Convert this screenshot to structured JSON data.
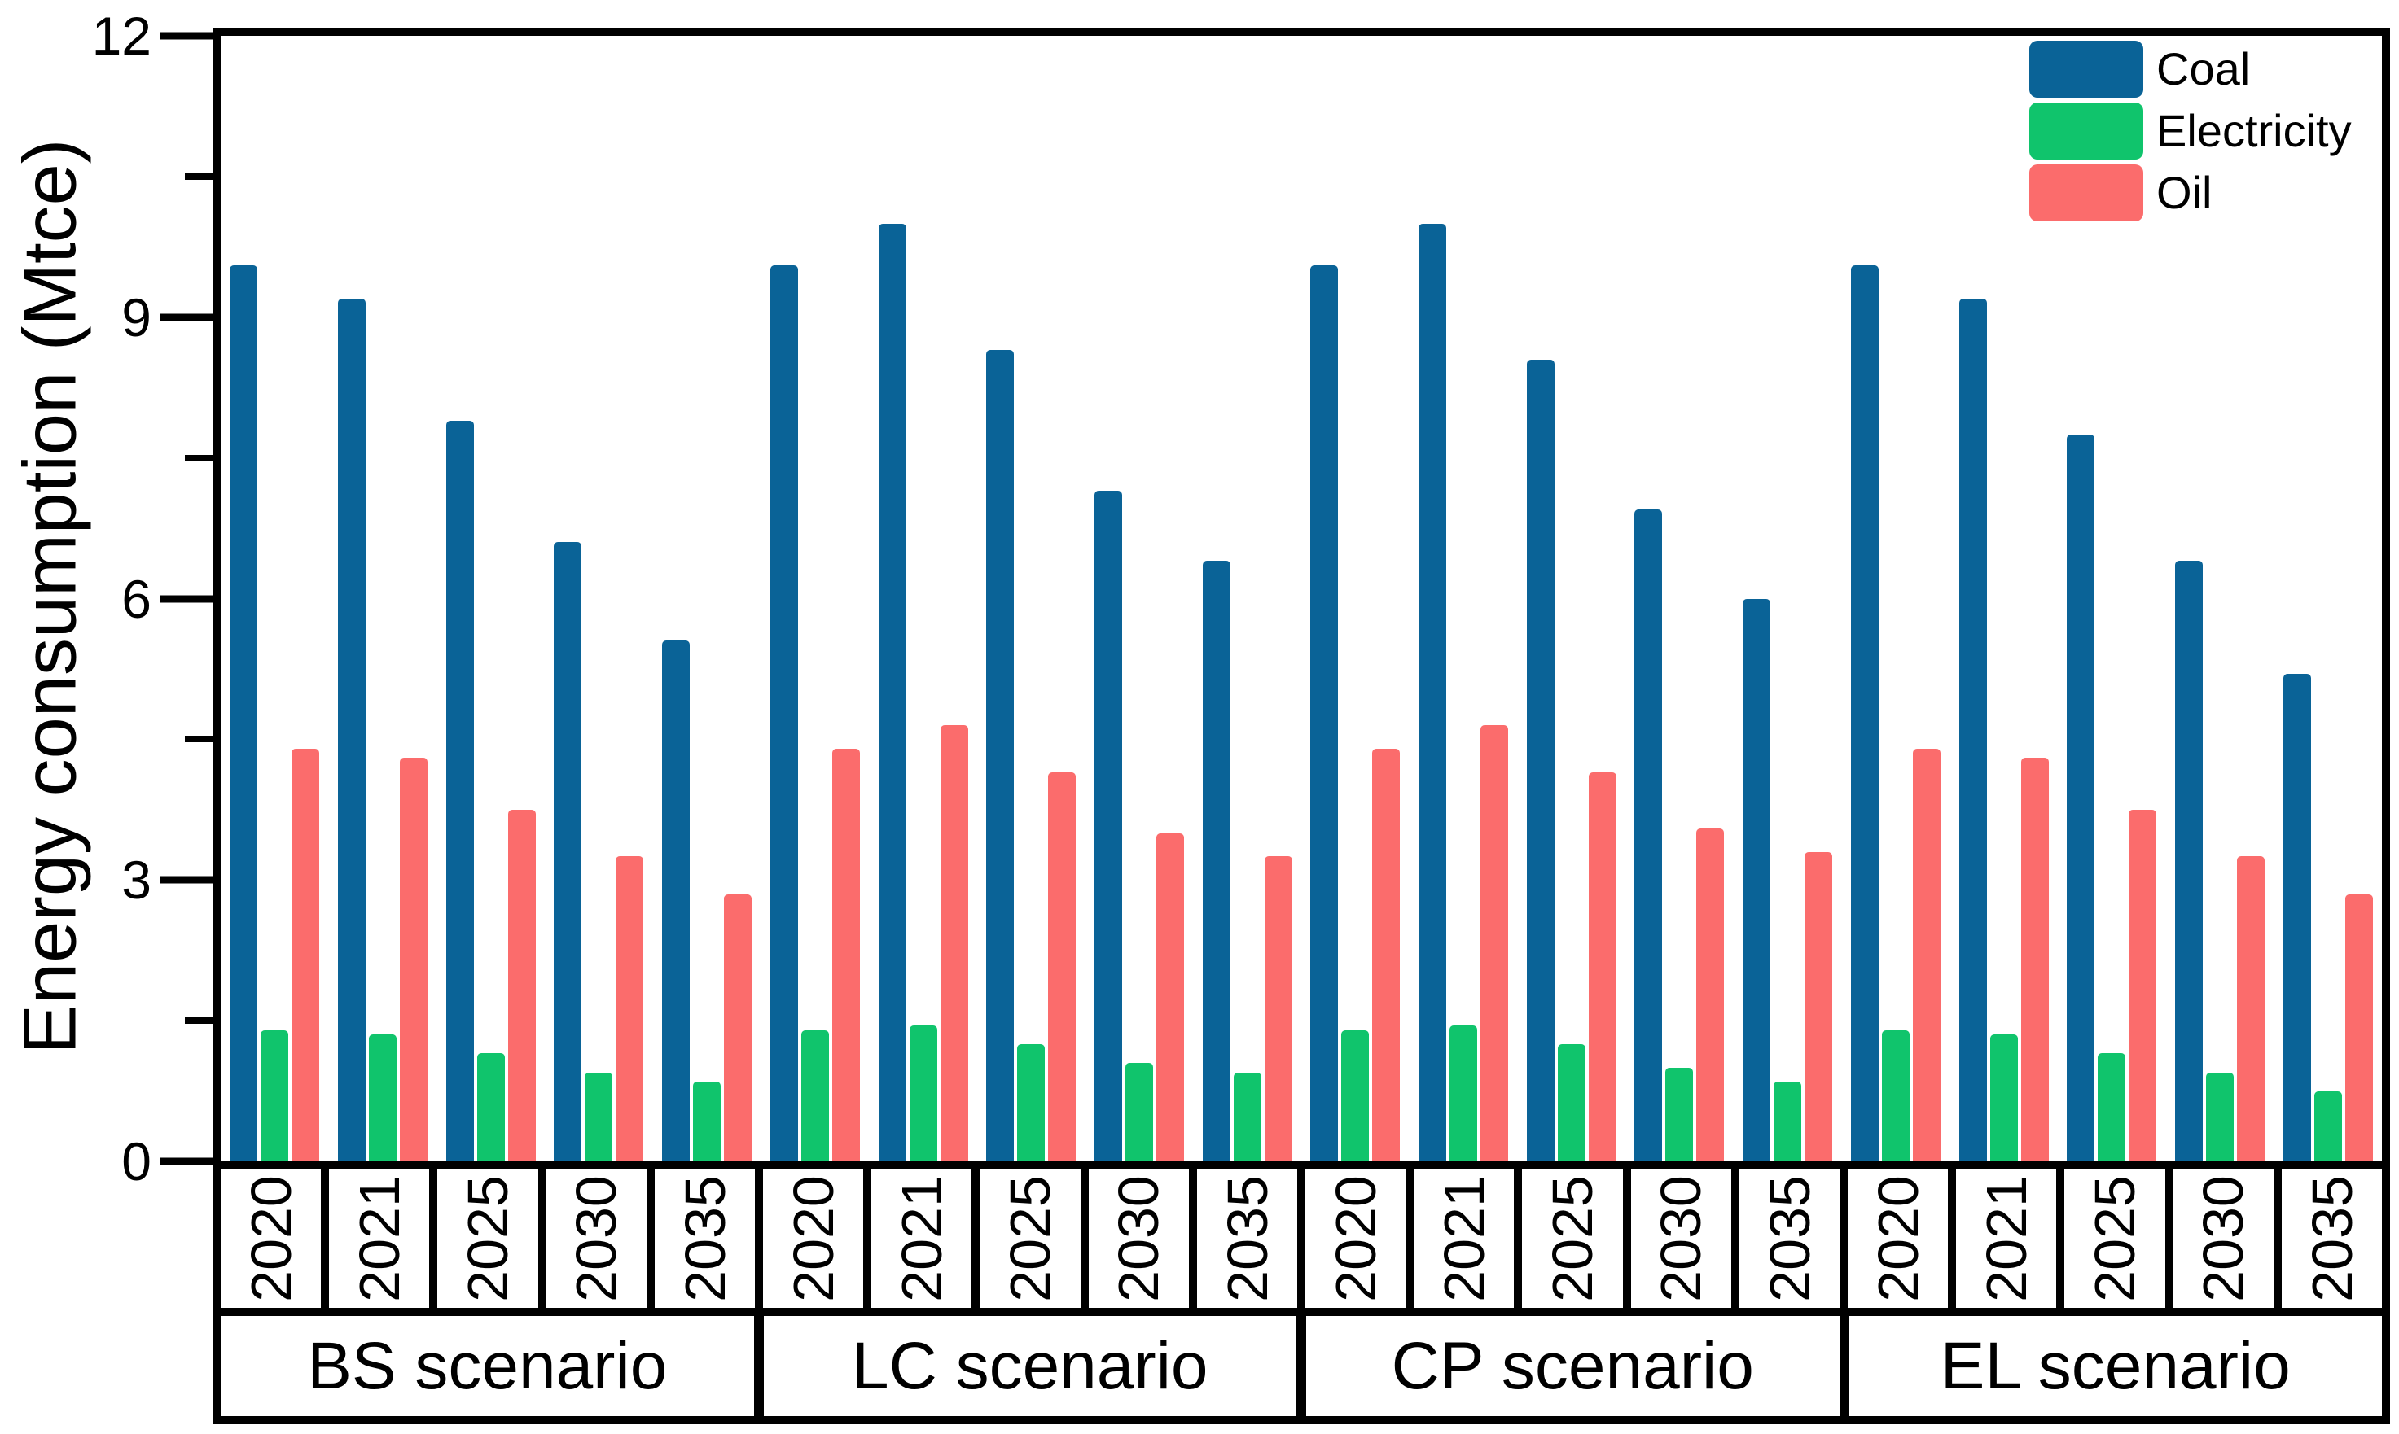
{
  "chart_data": {
    "type": "bar",
    "title": "",
    "ylabel": "Energy consumption (Mtce)",
    "ylim": [
      0,
      12
    ],
    "yticks_major": [
      0,
      3,
      6,
      9,
      12
    ],
    "ytick_labels": [
      "0",
      "3",
      "6",
      "9",
      "12"
    ],
    "yticks_minor": [
      1.5,
      4.5,
      7.5,
      10.5
    ],
    "grid": false,
    "legend_position": "top-right-inside",
    "years": [
      "2020",
      "2021",
      "2025",
      "2030",
      "2035"
    ],
    "scenario_labels": [
      "BS scenario",
      "LC scenario",
      "CP scenario",
      "EL scenario"
    ],
    "series": [
      {
        "name": "Coal",
        "color": "#0a6397",
        "values": [
          [
            9.55,
            9.2,
            7.9,
            6.6,
            5.55
          ],
          [
            9.55,
            10.0,
            8.65,
            7.15,
            6.4
          ],
          [
            9.55,
            10.0,
            8.55,
            6.95,
            6.0
          ],
          [
            9.55,
            9.2,
            7.75,
            6.4,
            5.2
          ]
        ]
      },
      {
        "name": "Electricity",
        "color": "#10c46c",
        "values": [
          [
            1.4,
            1.35,
            1.15,
            0.95,
            0.85
          ],
          [
            1.4,
            1.45,
            1.25,
            1.05,
            0.95
          ],
          [
            1.4,
            1.45,
            1.25,
            1.0,
            0.85
          ],
          [
            1.4,
            1.35,
            1.15,
            0.95,
            0.75
          ]
        ]
      },
      {
        "name": "Oil",
        "color": "#fb6c6c",
        "values": [
          [
            4.4,
            4.3,
            3.75,
            3.25,
            2.85
          ],
          [
            4.4,
            4.65,
            4.15,
            3.5,
            3.25
          ],
          [
            4.4,
            4.65,
            4.15,
            3.55,
            3.3
          ],
          [
            4.4,
            4.3,
            3.75,
            3.25,
            2.85
          ]
        ]
      }
    ],
    "colors": {
      "axis": "#000000",
      "background": "#ffffff",
      "coal": "#0a6397",
      "electricity": "#10c46c",
      "oil": "#fb6c6c"
    }
  }
}
